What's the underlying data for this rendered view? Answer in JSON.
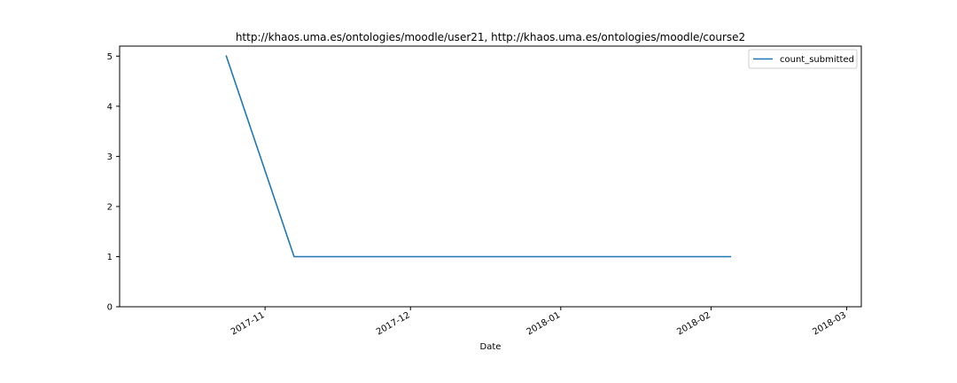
{
  "chart_data": {
    "type": "line",
    "title": "http://khaos.uma.es/ontologies/moodle/user21, http://khaos.uma.es/ontologies/moodle/course2",
    "xlabel": "Date",
    "ylabel": "",
    "x_type": "date",
    "xlim": [
      "2017-10-02",
      "2018-03-04"
    ],
    "ylim": [
      0,
      5.2
    ],
    "x_ticks": [
      {
        "date": "2017-11-01",
        "label": "2017-11"
      },
      {
        "date": "2017-12-01",
        "label": "2017-12"
      },
      {
        "date": "2018-01-01",
        "label": "2018-01"
      },
      {
        "date": "2018-02-01",
        "label": "2018-02"
      },
      {
        "date": "2018-03-01",
        "label": "2018-03"
      }
    ],
    "y_ticks": [
      0,
      1,
      2,
      3,
      4,
      5
    ],
    "grid": false,
    "legend_position": "top-right",
    "series": [
      {
        "name": "count_submitted",
        "color": "#1f77b4",
        "x": [
          "2017-10-24",
          "2017-11-07",
          "2018-02-05"
        ],
        "y": [
          5,
          1,
          1
        ]
      }
    ]
  }
}
